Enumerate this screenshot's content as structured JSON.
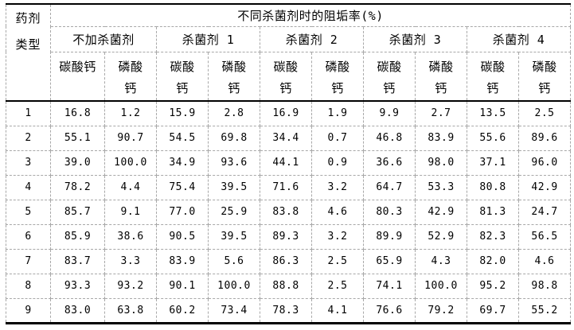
{
  "table": {
    "corner": {
      "lines": [
        "药剂",
        "类型"
      ]
    },
    "main_header": "不同杀菌剂时的阻垢率(%)",
    "groups": [
      {
        "label": "不加杀菌剂"
      },
      {
        "label": "杀菌剂 1"
      },
      {
        "label": "杀菌剂 2"
      },
      {
        "label": "杀菌剂 3"
      },
      {
        "label": "杀菌剂 4"
      }
    ],
    "subcols": [
      {
        "lines": [
          "碳酸钙"
        ]
      },
      {
        "lines": [
          "磷酸",
          "钙"
        ]
      },
      {
        "lines": [
          "碳酸",
          "钙"
        ]
      },
      {
        "lines": [
          "磷酸",
          "钙"
        ]
      },
      {
        "lines": [
          "碳酸",
          "钙"
        ]
      },
      {
        "lines": [
          "磷酸",
          "钙"
        ]
      },
      {
        "lines": [
          "碳酸",
          "钙"
        ]
      },
      {
        "lines": [
          "磷酸",
          "钙"
        ]
      },
      {
        "lines": [
          "碳酸",
          "钙"
        ]
      },
      {
        "lines": [
          "磷酸",
          "钙"
        ]
      }
    ],
    "rows": [
      {
        "id": "1",
        "values": [
          "16.8",
          "1.2",
          "15.9",
          "2.8",
          "16.9",
          "1.9",
          "9.9",
          "2.7",
          "13.5",
          "2.5"
        ]
      },
      {
        "id": "2",
        "values": [
          "55.1",
          "90.7",
          "54.5",
          "69.8",
          "34.4",
          "0.7",
          "46.8",
          "83.9",
          "55.6",
          "89.6"
        ]
      },
      {
        "id": "3",
        "values": [
          "39.0",
          "100.0",
          "34.9",
          "93.6",
          "44.1",
          "0.9",
          "36.6",
          "98.0",
          "37.1",
          "96.0"
        ]
      },
      {
        "id": "4",
        "values": [
          "78.2",
          "4.4",
          "75.4",
          "39.5",
          "71.6",
          "3.2",
          "64.7",
          "53.3",
          "80.8",
          "42.9"
        ]
      },
      {
        "id": "5",
        "values": [
          "85.7",
          "9.1",
          "77.0",
          "25.9",
          "83.8",
          "4.6",
          "80.3",
          "42.9",
          "81.3",
          "24.7"
        ]
      },
      {
        "id": "6",
        "values": [
          "85.9",
          "38.6",
          "90.5",
          "39.5",
          "89.3",
          "3.2",
          "89.9",
          "52.9",
          "82.3",
          "56.5"
        ]
      },
      {
        "id": "7",
        "values": [
          "83.7",
          "3.3",
          "83.9",
          "5.6",
          "86.3",
          "2.5",
          "65.9",
          "4.3",
          "82.0",
          "4.6"
        ]
      },
      {
        "id": "8",
        "values": [
          "93.3",
          "93.2",
          "90.1",
          "100.0",
          "88.8",
          "2.5",
          "74.1",
          "100.0",
          "95.2",
          "98.8"
        ]
      },
      {
        "id": "9",
        "values": [
          "83.0",
          "63.8",
          "60.2",
          "73.4",
          "78.3",
          "4.1",
          "76.6",
          "79.2",
          "69.7",
          "55.2"
        ]
      }
    ],
    "colors": {
      "rule_solid": "#000000",
      "grid_dashed": "#a8a8a8",
      "text": "#000000",
      "background": "#ffffff"
    }
  }
}
